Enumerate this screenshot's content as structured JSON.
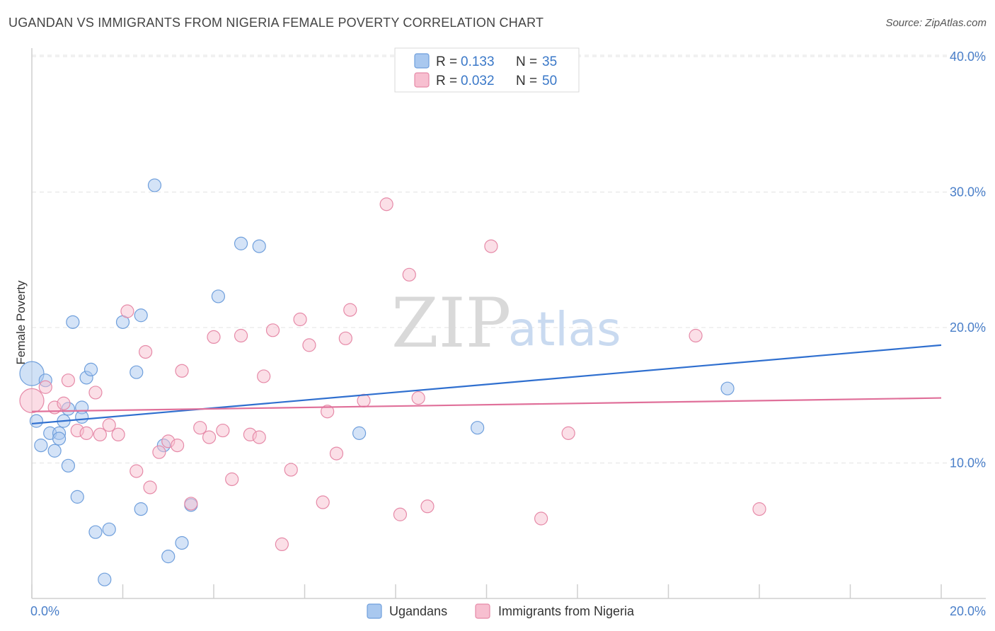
{
  "header": {
    "title": "UGANDAN VS IMMIGRANTS FROM NIGERIA FEMALE POVERTY CORRELATION CHART",
    "source": "Source: ZipAtlas.com"
  },
  "watermark": {
    "zip": "ZIP",
    "atlas": "atlas"
  },
  "legend": {
    "rows": [
      {
        "r_label": "R =",
        "r_value": "0.133",
        "n_label": "N =",
        "n_value": "35",
        "color": "#a9c8ef",
        "stroke": "#6f9fdc"
      },
      {
        "r_label": "R =",
        "r_value": "0.032",
        "n_label": "N =",
        "n_value": "50",
        "color": "#f7bfd0",
        "stroke": "#e68aa8"
      }
    ]
  },
  "bottom_legend": {
    "items": [
      {
        "label": "Ugandans",
        "color": "#a9c8ef",
        "stroke": "#6f9fdc"
      },
      {
        "label": "Immigrants from Nigeria",
        "color": "#f7bfd0",
        "stroke": "#e68aa8"
      }
    ]
  },
  "chart_data": {
    "type": "scatter",
    "title": "UGANDAN VS IMMIGRANTS FROM NIGERIA FEMALE POVERTY CORRELATION CHART",
    "xlabel": "",
    "ylabel": "Female Poverty",
    "xlim": [
      0,
      20
    ],
    "ylim": [
      0,
      40
    ],
    "x_tick_labels": [
      "0.0%",
      "20.0%"
    ],
    "y_ticks": [
      10,
      20,
      30,
      40
    ],
    "y_tick_labels": [
      "10.0%",
      "20.0%",
      "30.0%",
      "40.0%"
    ],
    "grid": true,
    "series": [
      {
        "name": "Ugandans",
        "color": "#a9c8ef",
        "stroke": "#6f9fdc",
        "line_color": "#2f6fcf",
        "trend": [
          [
            0,
            12.9
          ],
          [
            20,
            18.7
          ]
        ],
        "points": [
          [
            0.0,
            16.6
          ],
          [
            0.1,
            13.1
          ],
          [
            0.3,
            16.1
          ],
          [
            0.2,
            11.3
          ],
          [
            0.4,
            12.2
          ],
          [
            0.5,
            10.9
          ],
          [
            0.6,
            12.2
          ],
          [
            0.6,
            11.8
          ],
          [
            0.7,
            13.1
          ],
          [
            0.8,
            14.0
          ],
          [
            0.8,
            9.8
          ],
          [
            0.9,
            20.4
          ],
          [
            1.0,
            7.5
          ],
          [
            1.1,
            14.1
          ],
          [
            1.1,
            13.4
          ],
          [
            1.2,
            16.3
          ],
          [
            1.3,
            16.9
          ],
          [
            1.4,
            4.9
          ],
          [
            1.6,
            1.4
          ],
          [
            1.7,
            5.1
          ],
          [
            2.0,
            20.4
          ],
          [
            2.3,
            16.7
          ],
          [
            2.4,
            6.6
          ],
          [
            2.4,
            20.9
          ],
          [
            2.7,
            30.5
          ],
          [
            2.9,
            11.3
          ],
          [
            3.0,
            3.1
          ],
          [
            3.3,
            4.1
          ],
          [
            3.5,
            6.9
          ],
          [
            4.1,
            22.3
          ],
          [
            4.6,
            26.2
          ],
          [
            5.0,
            26.0
          ],
          [
            7.2,
            12.2
          ],
          [
            9.8,
            12.6
          ],
          [
            15.3,
            15.5
          ]
        ]
      },
      {
        "name": "Immigrants from Nigeria",
        "color": "#f7bfd0",
        "stroke": "#e68aa8",
        "line_color": "#e0709a",
        "trend": [
          [
            0,
            13.8
          ],
          [
            20,
            14.8
          ]
        ],
        "points": [
          [
            0.0,
            14.6
          ],
          [
            0.3,
            15.6
          ],
          [
            0.5,
            14.1
          ],
          [
            0.7,
            14.4
          ],
          [
            0.8,
            16.1
          ],
          [
            1.0,
            12.4
          ],
          [
            1.2,
            12.2
          ],
          [
            1.4,
            15.2
          ],
          [
            1.5,
            12.1
          ],
          [
            1.7,
            12.8
          ],
          [
            1.9,
            12.1
          ],
          [
            2.1,
            21.2
          ],
          [
            2.3,
            9.4
          ],
          [
            2.5,
            18.2
          ],
          [
            2.6,
            8.2
          ],
          [
            2.8,
            10.8
          ],
          [
            3.0,
            11.6
          ],
          [
            3.2,
            11.3
          ],
          [
            3.3,
            16.8
          ],
          [
            3.5,
            7.0
          ],
          [
            3.7,
            12.6
          ],
          [
            3.9,
            11.9
          ],
          [
            4.0,
            19.3
          ],
          [
            4.2,
            12.4
          ],
          [
            4.4,
            8.8
          ],
          [
            4.6,
            19.4
          ],
          [
            4.8,
            12.1
          ],
          [
            5.0,
            11.9
          ],
          [
            5.1,
            16.4
          ],
          [
            5.3,
            19.8
          ],
          [
            5.5,
            4.0
          ],
          [
            5.7,
            9.5
          ],
          [
            5.9,
            20.6
          ],
          [
            6.1,
            18.7
          ],
          [
            6.4,
            7.1
          ],
          [
            6.5,
            13.8
          ],
          [
            6.7,
            10.7
          ],
          [
            6.9,
            19.2
          ],
          [
            7.0,
            21.3
          ],
          [
            7.3,
            14.6
          ],
          [
            7.8,
            29.1
          ],
          [
            8.1,
            6.2
          ],
          [
            8.3,
            23.9
          ],
          [
            8.5,
            14.8
          ],
          [
            8.7,
            6.8
          ],
          [
            10.1,
            26.0
          ],
          [
            11.2,
            5.9
          ],
          [
            11.8,
            12.2
          ],
          [
            14.6,
            19.4
          ],
          [
            16.0,
            6.6
          ]
        ]
      }
    ]
  }
}
